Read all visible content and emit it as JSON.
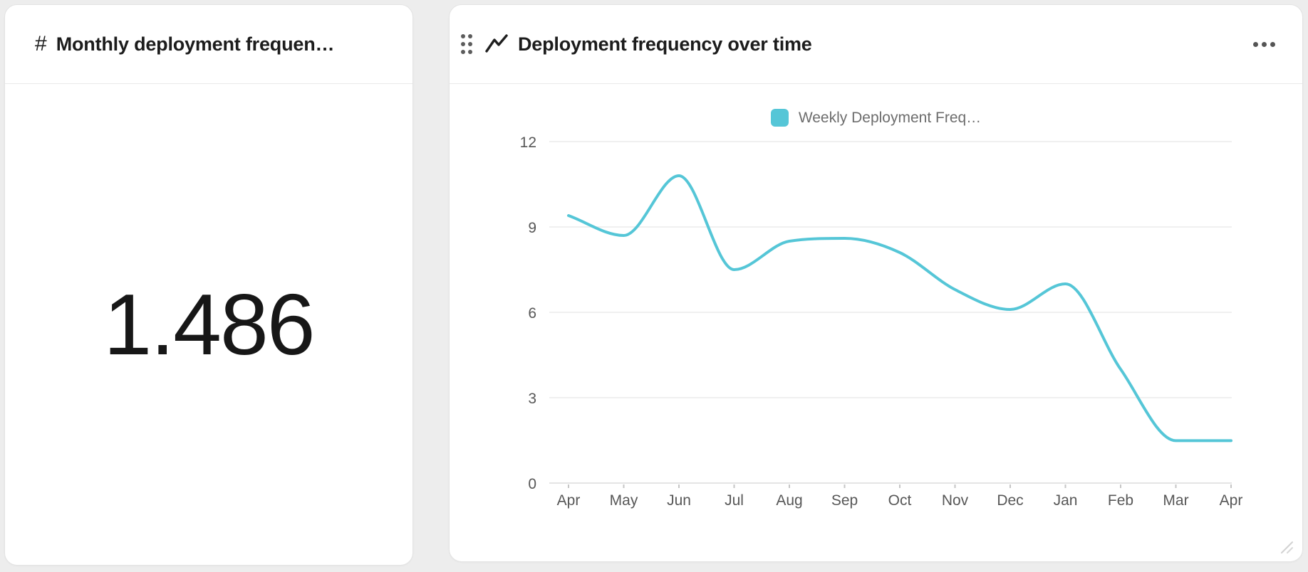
{
  "metric_card": {
    "icon": "#",
    "title": "Monthly deployment frequen…",
    "value": "1.486"
  },
  "chart_data": {
    "type": "line",
    "title": "Deployment frequency over time",
    "x": [
      "Apr",
      "May",
      "Jun",
      "Jul",
      "Aug",
      "Sep",
      "Oct",
      "Nov",
      "Dec",
      "Jan",
      "Feb",
      "Mar",
      "Apr"
    ],
    "series": [
      {
        "name": "Weekly Deployment Freq…",
        "color": "#55c6d7",
        "values": [
          9.4,
          8.7,
          10.8,
          7.5,
          8.5,
          8.6,
          8.1,
          6.8,
          6.1,
          7.0,
          4.0,
          1.49,
          1.49
        ]
      }
    ],
    "ylim": [
      0,
      12
    ],
    "yticks": [
      0,
      3,
      6,
      9,
      12
    ],
    "grid": true,
    "legend_position": "top",
    "smooth": true,
    "xlabel": "",
    "ylabel": ""
  },
  "colors": {
    "accent": "#55c6d7",
    "grid_line": "#ececec",
    "axis_line": "#dcdcdc",
    "tick": "#c6c6c6",
    "axis_text": "#575757",
    "legend_text": "#6d6d6d",
    "title_text": "#1c1c1c",
    "page_bg": "#ededed",
    "card_border": "#e3e3e3"
  }
}
